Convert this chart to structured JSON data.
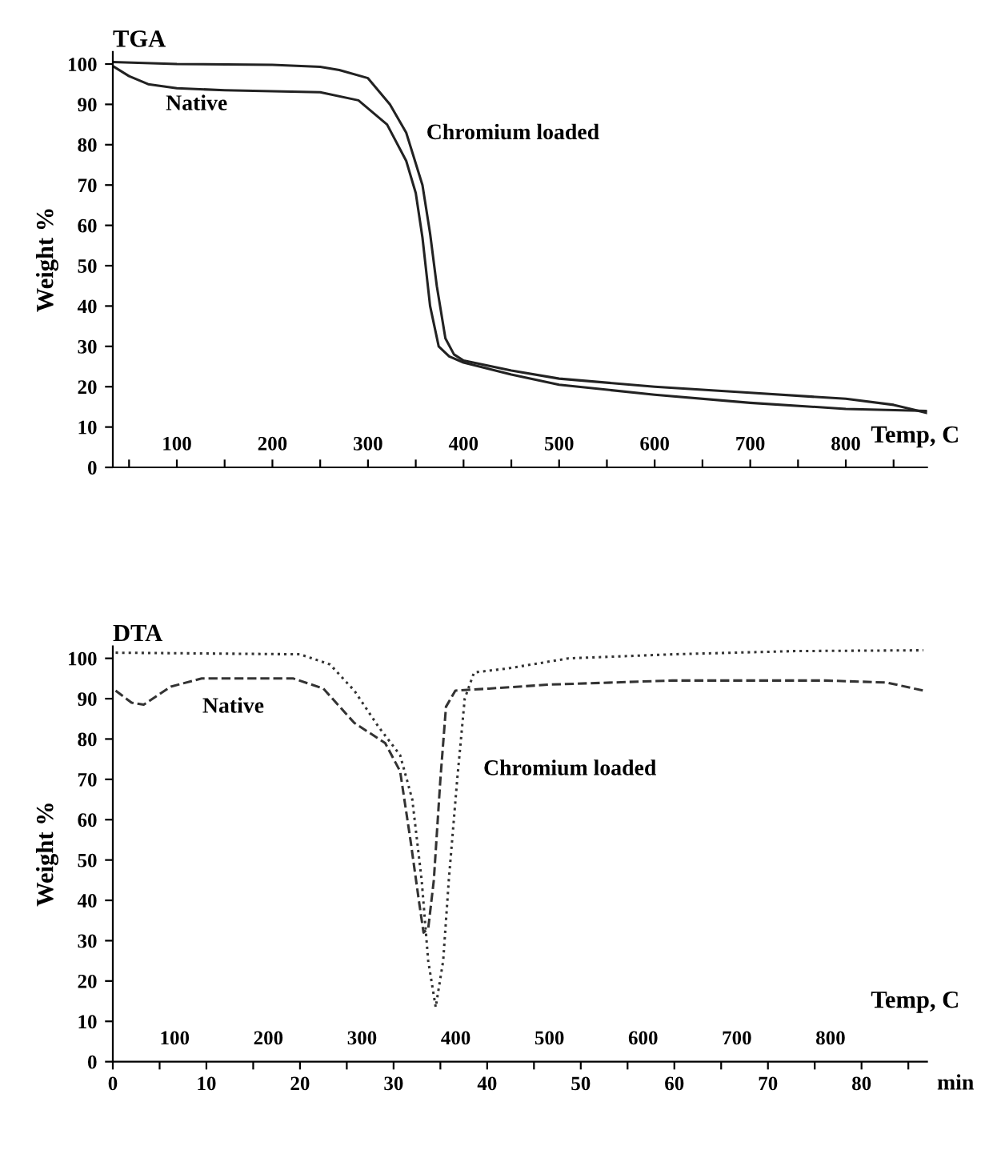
{
  "chart_data": [
    {
      "type": "line",
      "title": "TGA",
      "xlabel": "Temp, C",
      "ylabel": "Weight %",
      "xlim": [
        33,
        885
      ],
      "ylim": [
        0,
        103
      ],
      "xticks": [
        {
          "value": 50,
          "label": null
        },
        100,
        {
          "value": 150,
          "label": null
        },
        200,
        {
          "value": 250,
          "label": null
        },
        300,
        {
          "value": 350,
          "label": null
        },
        400,
        {
          "value": 450,
          "label": null
        },
        500,
        {
          "value": 550,
          "label": null
        },
        600,
        {
          "value": 650,
          "label": null
        },
        700,
        {
          "value": 750,
          "label": null
        },
        800,
        {
          "value": 850,
          "label": null
        }
      ],
      "yticks": [
        0,
        10,
        20,
        30,
        40,
        50,
        60,
        70,
        80,
        90,
        100
      ],
      "grid": false,
      "legend": false,
      "line_style": "solid",
      "marker": "none",
      "series": [
        {
          "color": "#222222",
          "x": [
            33,
            100,
            200,
            250,
            270,
            300,
            323,
            340,
            357,
            365,
            372,
            381,
            390,
            400,
            450,
            500,
            600,
            700,
            800,
            850,
            885
          ],
          "values": [
            100.5,
            100,
            99.8,
            99.3,
            98.5,
            96.5,
            90,
            83,
            70,
            58,
            45,
            32,
            28,
            26.5,
            24,
            22,
            20,
            18.5,
            17,
            15.5,
            13.5
          ]
        },
        {
          "color": "#222222",
          "x": [
            33,
            50,
            70,
            100,
            150,
            250,
            290,
            320,
            340,
            350,
            357,
            365,
            374,
            385,
            400,
            450,
            500,
            600,
            700,
            800,
            885
          ],
          "values": [
            99.5,
            97,
            95,
            94,
            93.5,
            93,
            91,
            85,
            76,
            68,
            57,
            40,
            30,
            27.5,
            26,
            23,
            20.5,
            18,
            16,
            14.5,
            14
          ]
        }
      ],
      "annotations": [
        "Native",
        "Chromium loaded"
      ]
    },
    {
      "type": "line",
      "title": "DTA",
      "xlabel": "min",
      "ylabel": "Weight %",
      "x2label": "Temp, C",
      "xlim": [
        0,
        87
      ],
      "ylim": [
        0,
        103
      ],
      "xticks": [
        0,
        {
          "value": 5,
          "label": null
        },
        10,
        {
          "value": 15,
          "label": null
        },
        20,
        {
          "value": 25,
          "label": null
        },
        30,
        {
          "value": 35,
          "label": null
        },
        40,
        {
          "value": 45,
          "label": null
        },
        50,
        {
          "value": 55,
          "label": null
        },
        60,
        {
          "value": 65,
          "label": null
        },
        70,
        {
          "value": 75,
          "label": null
        },
        80,
        {
          "value": 85,
          "label": null
        }
      ],
      "x2lim": [
        34,
        903
      ],
      "x2ticks": [
        100,
        200,
        300,
        400,
        500,
        600,
        700,
        800
      ],
      "yticks": [
        0,
        10,
        20,
        30,
        40,
        50,
        60,
        70,
        80,
        90,
        100
      ],
      "grid": false,
      "legend": false,
      "marker": "none",
      "series": [
        {
          "color": "#333333",
          "line_style": "dotted",
          "x": [
            0.3,
            20,
            23.2,
            25.8,
            28.4,
            30.7,
            32,
            33,
            33.7,
            34.5,
            35.3,
            35.9,
            36.8,
            37.6,
            38.6,
            42.2,
            48.7,
            59.8,
            72.9,
            86.6
          ],
          "values": [
            101.4,
            101,
            98.5,
            92,
            83,
            76,
            65,
            45,
            25,
            13.5,
            25,
            45,
            70,
            90,
            96.5,
            97.5,
            100,
            101,
            101.8,
            102
          ]
        },
        {
          "color": "#333333",
          "line_style": "dashed",
          "x": [
            0.3,
            2,
            3.3,
            6.2,
            9.5,
            19.3,
            22.5,
            25.8,
            29.1,
            30.7,
            31.8,
            32.7,
            33.2,
            33.7,
            34.3,
            35,
            35.6,
            36.6,
            40.2,
            46.7,
            59.8,
            76.1,
            82.7,
            86.6
          ],
          "values": [
            92,
            89,
            88.5,
            93,
            95,
            95,
            92.5,
            84,
            79,
            72,
            55,
            40,
            32,
            33,
            45,
            70,
            88,
            92,
            92.5,
            93.5,
            94.5,
            94.5,
            94,
            92
          ]
        }
      ],
      "annotations": [
        "Native",
        "Chromium loaded"
      ]
    }
  ]
}
